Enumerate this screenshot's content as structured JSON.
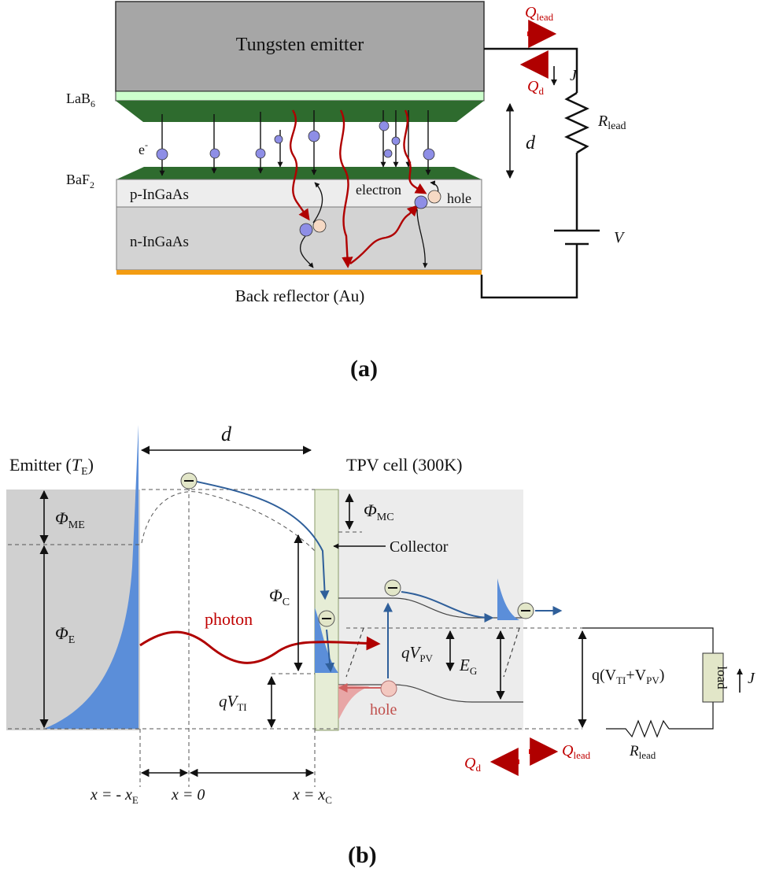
{
  "panel_a": {
    "emitter_label": "Tungsten emitter",
    "lab6_base": "LaB",
    "lab6_sub": "6",
    "electron_symbol": "e",
    "electron_sup": "-",
    "baf2_base": "BaF",
    "baf2_sub": "2",
    "p_layer": "p-InGaAs",
    "n_layer": "n-InGaAs",
    "electron_label": "electron",
    "hole_label": "hole",
    "reflector_label": "Back reflector (Au)",
    "gap_label": "d",
    "q_lead": "Q",
    "q_lead_sub": "lead",
    "q_d": "Q",
    "q_d_sub": "d",
    "current": "J",
    "r_lead": "R",
    "r_lead_sub": "lead",
    "voltage": "V",
    "caption": "(a)"
  },
  "panel_b": {
    "emitter_base": "Emitter (",
    "emitter_T": "T",
    "emitter_T_sub": "E",
    "emitter_close": ")",
    "tpv_label": "TPV cell (300K)",
    "gap_label": "d",
    "phi": "Φ",
    "phi_me_sub": "ME",
    "phi_e_sub": "E",
    "phi_c_sub": "C",
    "phi_mc_sub": "MC",
    "collector_label": "Collector",
    "photon_label": "photon",
    "hole_label": "hole",
    "qv_pv_base": "qV",
    "qv_pv_sub": "PV",
    "qv_ti_base": "qV",
    "qv_ti_sub": "TI",
    "eg_base": "E",
    "eg_sub": "G",
    "qsum_a": "q(V",
    "qsum_ti": "TI",
    "qsum_plus": "+V",
    "qsum_pv": "PV",
    "qsum_close": ")",
    "load_label": "load",
    "current": "J",
    "r_lead": "R",
    "r_lead_sub": "lead",
    "q_lead": "Q",
    "q_lead_sub": "lead",
    "q_d": "Q",
    "q_d_sub": "d",
    "x_e_a": "x = - x",
    "x_e_sub": "E",
    "x_0": "x = 0",
    "x_c_a": "x = x",
    "x_c_sub": "C",
    "caption": "(b)"
  },
  "colors": {
    "emitter_gray": "#a6a6a6",
    "lab6_green": "#ccffcc",
    "dark_green": "#2e6b2e",
    "orange": "#f39c12",
    "carrier_blue": "#8e8ee6",
    "hole_peach": "#f6d9c4",
    "photon_red": "#b00000",
    "band_blue": "#2f5f9a",
    "dist_blue": "#5b8ed9"
  }
}
